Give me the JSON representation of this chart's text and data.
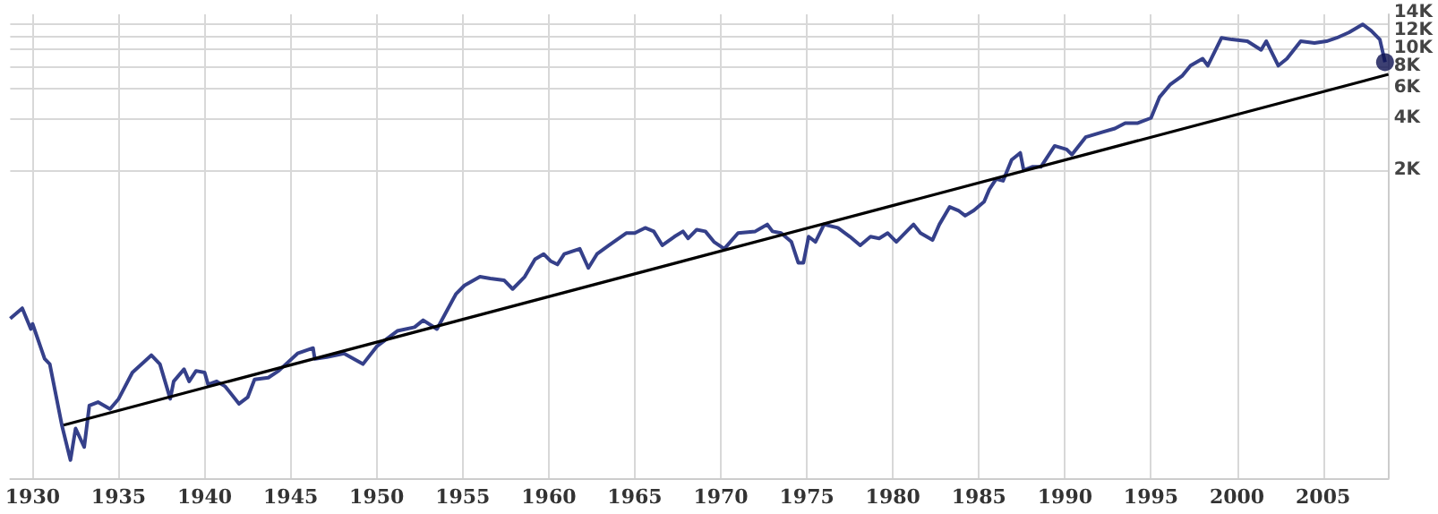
{
  "chart_data": {
    "type": "line",
    "xlim": [
      1928.7,
      2008.8
    ],
    "xticks": [
      1930,
      1935,
      1940,
      1945,
      1950,
      1955,
      1960,
      1965,
      1970,
      1975,
      1980,
      1985,
      1990,
      1995,
      2000,
      2005
    ],
    "ylim": [
      33,
      16000
    ],
    "yticks": [
      {
        "value": 2000,
        "label": "2K"
      },
      {
        "value": 4000,
        "label": "4K"
      },
      {
        "value": 6000,
        "label": "6K"
      },
      {
        "value": 8000,
        "label": "8K"
      },
      {
        "value": 10000,
        "label": "10K"
      },
      {
        "value": 12000,
        "label": "12K"
      },
      {
        "value": 14000,
        "label": "14K"
      }
    ],
    "log": "y",
    "grid": true,
    "series": [
      {
        "color": "#35408a",
        "x": [
          1928.7,
          1929.4,
          1929.9,
          1930.0,
          1930.7,
          1931.0,
          1931.7,
          1932.2,
          1932.5,
          1933.0,
          1933.3,
          1933.8,
          1934.5,
          1935.0,
          1935.8,
          1936.9,
          1937.4,
          1938.0,
          1938.2,
          1938.8,
          1939.1,
          1939.5,
          1940.0,
          1940.2,
          1940.7,
          1941.2,
          1942.0,
          1942.5,
          1942.9,
          1943.7,
          1944.3,
          1945.4,
          1946.3,
          1946.4,
          1947.1,
          1948.1,
          1949.2,
          1950.0,
          1951.2,
          1952.2,
          1952.7,
          1953.5,
          1954.6,
          1955.1,
          1956.0,
          1956.6,
          1957.4,
          1957.9,
          1958.6,
          1959.2,
          1959.7,
          1960.1,
          1960.5,
          1960.9,
          1961.8,
          1962.3,
          1962.8,
          1963.5,
          1964.5,
          1965.0,
          1965.6,
          1966.1,
          1966.6,
          1967.3,
          1967.8,
          1968.1,
          1968.6,
          1969.1,
          1969.6,
          1970.2,
          1971.0,
          1972.0,
          1972.7,
          1973.0,
          1973.5,
          1974.1,
          1974.5,
          1974.8,
          1975.1,
          1975.5,
          1976.0,
          1976.8,
          1977.5,
          1978.1,
          1978.7,
          1979.2,
          1979.7,
          1980.2,
          1980.9,
          1981.2,
          1981.6,
          1982.3,
          1982.7,
          1983.3,
          1983.8,
          1984.2,
          1984.7,
          1985.3,
          1985.6,
          1986.0,
          1986.4,
          1986.9,
          1987.4,
          1987.6,
          1988.1,
          1988.6,
          1989.4,
          1990.1,
          1990.4,
          1991.2,
          1992.2,
          1992.9,
          1993.5,
          1994.2,
          1995.0,
          1995.5,
          1996.1,
          1996.8,
          1997.3,
          1998.0,
          1998.3,
          1999.1,
          1999.7,
          2000.6,
          2001.4,
          2001.7,
          2002.4,
          2002.9,
          2003.7,
          2004.5,
          2005.2,
          2005.8,
          2006.5,
          2007.3,
          2007.8,
          2008.3,
          2008.6
        ],
        "values": [
          277,
          318,
          241,
          258,
          162,
          151,
          67,
          42,
          64,
          50,
          87,
          91,
          83,
          95,
          135,
          170,
          151,
          95,
          120,
          141,
          120,
          138,
          135,
          115,
          120,
          112,
          89,
          97,
          123,
          126,
          138,
          174,
          187,
          162,
          166,
          174,
          151,
          191,
          235,
          247,
          271,
          241,
          384,
          431,
          484,
          473,
          462,
          411,
          484,
          611,
          655,
          597,
          570,
          655,
          702,
          544,
          655,
          736,
          866,
          866,
          929,
          886,
          736,
          826,
          886,
          807,
          907,
          886,
          771,
          702,
          866,
          886,
          972,
          886,
          866,
          771,
          583,
          583,
          826,
          771,
          972,
          929,
          826,
          736,
          826,
          807,
          866,
          771,
          907,
          972,
          866,
          789,
          972,
          1228,
          1171,
          1092,
          1171,
          1315,
          1548,
          1781,
          1739,
          2300,
          2524,
          2000,
          2095,
          2095,
          2770,
          2643,
          2465,
          3112,
          3336,
          3494,
          3748,
          3748,
          4018,
          5312,
          6250,
          7022,
          8072,
          8860,
          8072,
          11700,
          11440,
          11180,
          9960,
          11180,
          8072,
          8860,
          11180,
          10920,
          11180,
          11700,
          12560,
          14000,
          12860,
          11440,
          8460
        ]
      },
      {
        "type": "line",
        "color": "#000000",
        "x": [
          1931.8,
          2008.8
        ],
        "values": [
          67,
          7190
        ]
      },
      {
        "type": "scatter",
        "color": "#0d1050",
        "x": [
          2008.6
        ],
        "values": [
          8460
        ]
      }
    ]
  }
}
